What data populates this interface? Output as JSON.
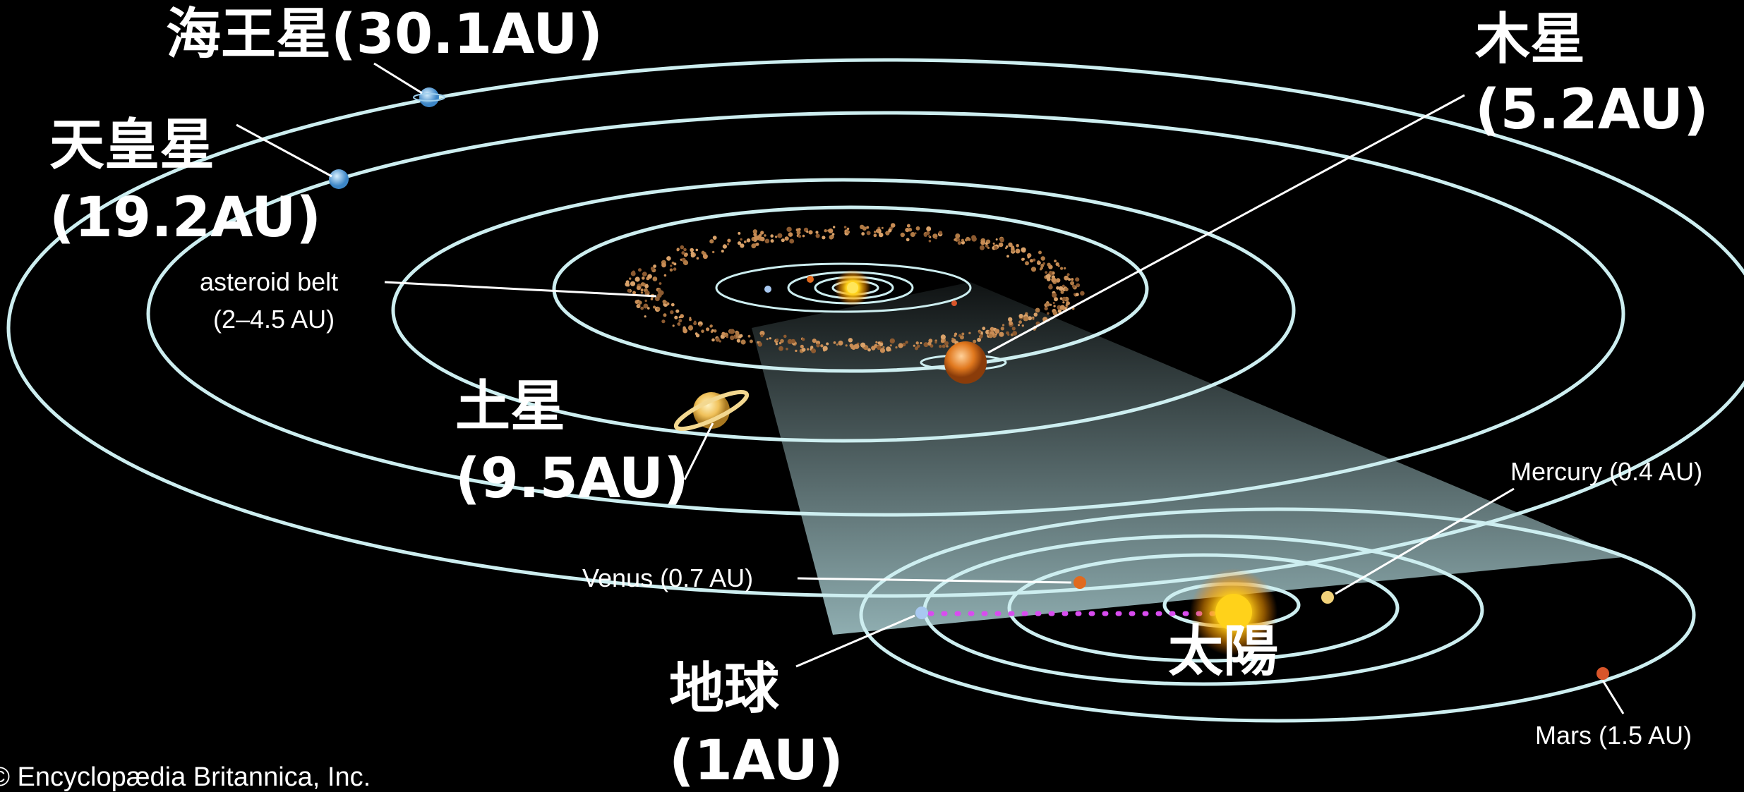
{
  "labels": {
    "neptune": "海王星(30.1AU)",
    "uranus_name": "天皇星",
    "uranus_dist": "(19.2AU)",
    "jupiter_name": "木星",
    "jupiter_dist": "(5.2AU)",
    "saturn_name": "土星",
    "saturn_dist": "(9.5AU)",
    "earth_name": "地球",
    "earth_dist": "(1AU)",
    "sun": "太陽",
    "asteroid_belt_line1": "asteroid belt",
    "asteroid_belt_line2": "(2–4.5 AU)",
    "venus": "Venus (0.7 AU)",
    "mercury": "Mercury (0.4 AU)",
    "mars": "Mars (1.5 AU)",
    "credit": "© Encyclopædia Britannica, Inc."
  },
  "colors": {
    "background": "#000000",
    "orbit": "#cdeef0",
    "wedge": "#bfe8ec",
    "belt": "#b07a45",
    "sun": "#ffd21a",
    "earth_path": "#d94cf0",
    "neptune": "#5a9fd6",
    "uranus": "#8fd2e8",
    "jupiter": "#e0781e",
    "saturn": "#f0c15a",
    "venus": "#e06a1f",
    "mercury": "#f2d27a",
    "mars": "#d8552a",
    "earth": "#a8c8f0"
  }
}
